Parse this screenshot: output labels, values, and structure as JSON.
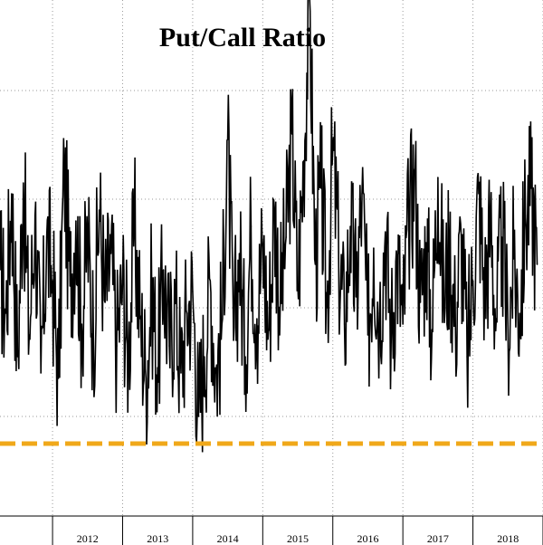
{
  "chart_data": {
    "type": "line",
    "title": "Put/Call Ratio",
    "xlabel": "",
    "ylabel": "",
    "x_range": [
      "2011-04",
      "2018-12"
    ],
    "ylim": [
      0.35,
      1.35
    ],
    "y_gridlines": [
      0.35,
      0.55,
      0.75,
      0.95,
      1.15,
      1.35
    ],
    "grid": "dotted",
    "categories": [
      "2012",
      "2013",
      "2014",
      "2015",
      "2016",
      "2017",
      "2018"
    ],
    "series": [
      {
        "color": "#000000",
        "style": "solid",
        "points": [
          [
            "2011-04-01",
            0.82
          ],
          [
            "2011-05-01",
            0.74
          ],
          [
            "2011-06-01",
            0.96
          ],
          [
            "2011-07-01",
            0.66
          ],
          [
            "2011-08-01",
            0.98
          ],
          [
            "2011-09-01",
            0.7
          ],
          [
            "2011-10-01",
            0.92
          ],
          [
            "2011-11-01",
            0.63
          ],
          [
            "2011-12-01",
            0.88
          ],
          [
            "2012-01-01",
            0.8
          ],
          [
            "2012-02-01",
            0.62
          ],
          [
            "2012-03-01",
            1.01
          ],
          [
            "2012-04-01",
            0.79
          ],
          [
            "2012-05-01",
            0.91
          ],
          [
            "2012-06-01",
            0.72
          ],
          [
            "2012-07-01",
            0.88
          ],
          [
            "2012-08-01",
            0.7
          ],
          [
            "2012-09-01",
            0.93
          ],
          [
            "2012-10-01",
            0.76
          ],
          [
            "2012-11-01",
            0.85
          ],
          [
            "2012-12-01",
            0.68
          ],
          [
            "2013-01-01",
            0.8
          ],
          [
            "2013-02-01",
            0.66
          ],
          [
            "2013-03-01",
            0.9
          ],
          [
            "2013-04-01",
            0.73
          ],
          [
            "2013-05-01",
            0.62
          ],
          [
            "2013-06-01",
            0.78
          ],
          [
            "2013-07-01",
            0.64
          ],
          [
            "2013-08-01",
            0.82
          ],
          [
            "2013-09-01",
            0.68
          ],
          [
            "2013-10-01",
            0.76
          ],
          [
            "2013-11-01",
            0.63
          ],
          [
            "2013-12-01",
            0.74
          ],
          [
            "2014-01-01",
            0.78
          ],
          [
            "2014-02-01",
            0.55
          ],
          [
            "2014-03-01",
            0.66
          ],
          [
            "2014-04-01",
            0.8
          ],
          [
            "2014-05-01",
            0.63
          ],
          [
            "2014-06-01",
            0.72
          ],
          [
            "2014-07-01",
            1.06
          ],
          [
            "2014-08-01",
            0.69
          ],
          [
            "2014-09-01",
            0.85
          ],
          [
            "2014-10-01",
            0.66
          ],
          [
            "2014-11-01",
            0.9
          ],
          [
            "2014-12-01",
            0.73
          ],
          [
            "2015-01-01",
            0.86
          ],
          [
            "2015-02-01",
            0.71
          ],
          [
            "2015-03-01",
            0.93
          ],
          [
            "2015-04-01",
            0.76
          ],
          [
            "2015-05-01",
            0.88
          ],
          [
            "2015-06-01",
            1.07
          ],
          [
            "2015-07-01",
            0.79
          ],
          [
            "2015-08-01",
            1.02
          ],
          [
            "2015-09-01",
            1.33
          ],
          [
            "2015-10-01",
            0.83
          ],
          [
            "2015-11-01",
            0.97
          ],
          [
            "2015-12-01",
            0.75
          ],
          [
            "2016-01-01",
            1.04
          ],
          [
            "2016-02-01",
            0.84
          ],
          [
            "2016-03-01",
            0.72
          ],
          [
            "2016-04-01",
            0.9
          ],
          [
            "2016-05-01",
            0.77
          ],
          [
            "2016-06-01",
            0.96
          ],
          [
            "2016-07-01",
            0.7
          ],
          [
            "2016-08-01",
            0.86
          ],
          [
            "2016-09-01",
            0.74
          ],
          [
            "2016-10-01",
            0.89
          ],
          [
            "2016-11-01",
            0.7
          ],
          [
            "2016-12-01",
            0.84
          ],
          [
            "2017-01-01",
            0.72
          ],
          [
            "2017-02-01",
            0.91
          ],
          [
            "2017-03-01",
            1.0
          ],
          [
            "2017-04-01",
            0.76
          ],
          [
            "2017-05-01",
            0.87
          ],
          [
            "2017-06-01",
            0.71
          ],
          [
            "2017-07-01",
            0.99
          ],
          [
            "2017-08-01",
            0.77
          ],
          [
            "2017-09-01",
            0.86
          ],
          [
            "2017-10-01",
            0.72
          ],
          [
            "2017-11-01",
            0.88
          ],
          [
            "2017-12-01",
            0.66
          ],
          [
            "2018-01-01",
            0.8
          ],
          [
            "2018-02-01",
            0.96
          ],
          [
            "2018-03-01",
            0.78
          ],
          [
            "2018-04-01",
            0.9
          ],
          [
            "2018-05-01",
            0.73
          ],
          [
            "2018-06-01",
            0.88
          ],
          [
            "2018-07-01",
            0.71
          ],
          [
            "2018-08-01",
            0.84
          ],
          [
            "2018-09-01",
            0.74
          ],
          [
            "2018-10-01",
            0.92
          ],
          [
            "2018-11-01",
            0.97
          ],
          [
            "2018-12-01",
            0.83
          ]
        ]
      },
      {
        "color": "#f0a81a",
        "style": "dashed",
        "value": 0.5
      }
    ]
  }
}
